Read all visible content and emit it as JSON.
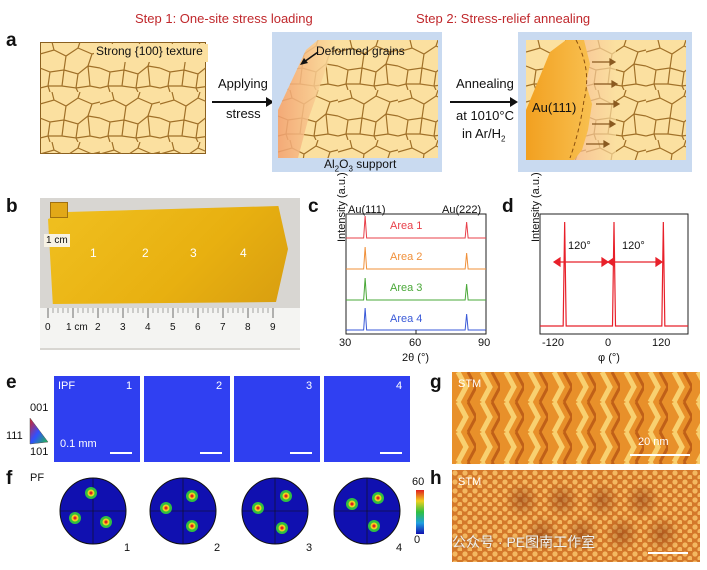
{
  "step1_title": "Step 1: One-site stress loading",
  "step2_title": "Step 2: Stress-relief annealing",
  "panel_a": {
    "label": "a",
    "texture_label": "Strong {100} texture",
    "arrow1_line1": "Applying",
    "arrow1_line2": "stress",
    "deformed_label": "Deformed grains",
    "support_label_prefix": "Al",
    "support_label_sub1": "2",
    "support_label_mid": "O",
    "support_label_sub2": "3",
    "support_label_suffix": " support",
    "arrow2_line1": "Annealing",
    "arrow2_line2": "at 1010°C",
    "arrow2_line3_prefix": "in Ar/H",
    "arrow2_line3_sub": "2",
    "au_label": "Au(111)"
  },
  "panel_b": {
    "label": "b",
    "cm_label": "1 cm",
    "areas": [
      "1",
      "2",
      "3",
      "4"
    ],
    "ruler_ticks": [
      "0",
      "1 cm",
      "2",
      "3",
      "4",
      "5",
      "6",
      "7",
      "8",
      "9"
    ]
  },
  "panel_c": {
    "label": "c",
    "peak1": "Au(111)",
    "peak2": "Au(222)",
    "ylabel": "Intensity (a.u.)",
    "xlabel": "2θ (°)",
    "x_ticks": [
      "30",
      "60",
      "90"
    ],
    "chart_data": {
      "type": "line",
      "x_range": [
        30,
        90
      ],
      "peaks_2theta": [
        38.2,
        81.7
      ],
      "series": [
        {
          "name": "Area 1",
          "color": "#e8404a"
        },
        {
          "name": "Area 2",
          "color": "#f0903a"
        },
        {
          "name": "Area 3",
          "color": "#4aa838"
        },
        {
          "name": "Area 4",
          "color": "#3a5ad8"
        }
      ]
    }
  },
  "panel_d": {
    "label": "d",
    "ylabel": "Intensity (a.u.)",
    "xlabel": "φ (°)",
    "x_ticks": [
      "-120",
      "0",
      "120"
    ],
    "spacing1": "120°",
    "spacing2": "120°",
    "chart_data": {
      "type": "line",
      "x_range": [
        -180,
        180
      ],
      "peaks_phi": [
        -120,
        0,
        120
      ],
      "color": "#e8202a"
    }
  },
  "panel_e": {
    "label": "e",
    "ipf_label": "IPF",
    "scale_label": "0.1 mm",
    "tiles": [
      "1",
      "2",
      "3",
      "4"
    ],
    "triangle_labels": [
      "001",
      "111",
      "101"
    ]
  },
  "panel_f": {
    "label": "f",
    "pf_label": "PF",
    "discs": [
      "1",
      "2",
      "3",
      "4"
    ],
    "colorbar_max": "60",
    "colorbar_min": "0"
  },
  "panel_g": {
    "label": "g",
    "stm_label": "STM",
    "scale_label": "20 nm"
  },
  "panel_h": {
    "label": "h",
    "stm_label": "STM"
  },
  "watermark": "公众号 · PE图南工作室",
  "colors": {
    "step": "#c0282c",
    "gold": "#f5c842",
    "grain_line": "#a07028"
  }
}
